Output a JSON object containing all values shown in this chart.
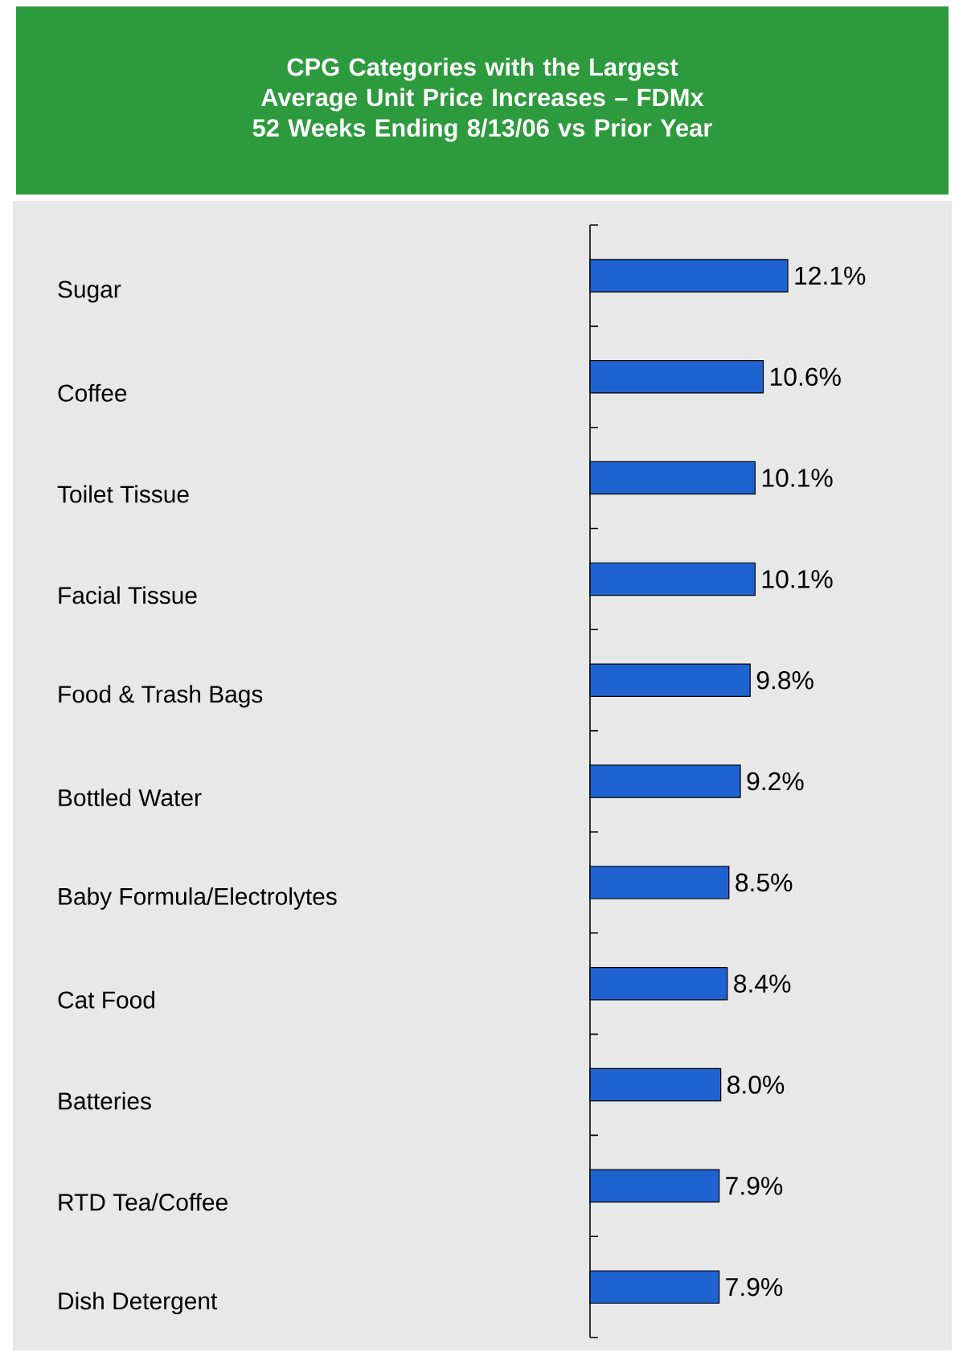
{
  "chart_data": {
    "type": "bar",
    "orientation": "horizontal",
    "title": "CPG Categories with the Largest Average Unit Price Increases – FDMx",
    "subtitle": "52 Weeks Ending 8/13/06 vs Prior Year",
    "categories": [
      "Sugar",
      "Coffee",
      "Toilet Tissue",
      "Facial Tissue",
      "Food & Trash Bags",
      "Bottled Water",
      "Baby Formula/Electrolytes",
      "Cat Food",
      "Batteries",
      "RTD Tea/Coffee",
      "Dish Detergent"
    ],
    "values": [
      12.1,
      10.6,
      10.1,
      10.1,
      9.8,
      9.2,
      8.5,
      8.4,
      8.0,
      7.9,
      7.9
    ],
    "value_labels": [
      "12.1%",
      "10.6%",
      "10.1%",
      "10.1%",
      "9.8%",
      "9.2%",
      "8.5%",
      "8.4%",
      "8.0%",
      "7.9%",
      "7.9%"
    ],
    "color": "#1f63d1"
  }
}
